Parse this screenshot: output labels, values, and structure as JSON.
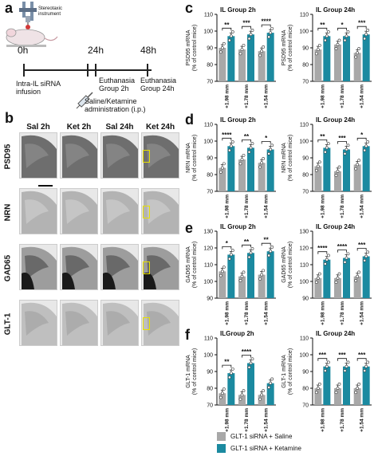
{
  "panels": {
    "a": "a",
    "b": "b",
    "c": "c",
    "d": "d",
    "e": "e",
    "f": "f"
  },
  "timeline": {
    "instrument_label": "Stereotaxic instrument",
    "t0": "0h",
    "t1": "24h",
    "t2": "48h",
    "infusion": "Intra-IL siRNA infusion",
    "drug": "Saline/Ketamine administration (i.p.)",
    "euth2": "Euthanasia Group 2h",
    "euth24": "Euthanasia Group 24h"
  },
  "histology": {
    "columns": [
      "Sal 2h",
      "Ket 2h",
      "Sal 24h",
      "Ket 24h"
    ],
    "rows": [
      "PSD95",
      "NRN",
      "GAD65",
      "GLT-1"
    ]
  },
  "colors": {
    "saline": "#a8a8a8",
    "ketamine": "#1b8aa0"
  },
  "legend": {
    "saline": "GLT-1 siRNA + Saline",
    "ketamine": "GLT-1 siRNA + Ketamine"
  },
  "chart_data": [
    {
      "type": "bar",
      "panel": "c",
      "title": "IL Group 2h",
      "ylabel": "PSD95 mRNA (% of control mice)",
      "ylim": [
        70,
        110
      ],
      "yticks": [
        70,
        80,
        90,
        100,
        110
      ],
      "categories": [
        "+1.98 mm",
        "+1.78 mm",
        "+1.54 mm"
      ],
      "series": [
        {
          "name": "GLT-1 siRNA + Saline",
          "values": [
            90,
            89,
            88
          ]
        },
        {
          "name": "GLT-1 siRNA + Ketamine",
          "values": [
            97,
            98,
            99
          ]
        }
      ],
      "significance": [
        "**",
        "***",
        "****"
      ]
    },
    {
      "type": "bar",
      "panel": "c",
      "title": "IL Group 24h",
      "ylabel": "PSD95 mRNA (% of control mice)",
      "ylim": [
        70,
        110
      ],
      "yticks": [
        70,
        80,
        90,
        100,
        110
      ],
      "categories": [
        "+1.98 mm",
        "+1.78 mm",
        "+1.54 mm"
      ],
      "series": [
        {
          "name": "GLT-1 siRNA + Saline",
          "values": [
            89,
            92,
            87
          ]
        },
        {
          "name": "GLT-1 siRNA + Ketamine",
          "values": [
            97,
            97,
            98
          ]
        }
      ],
      "significance": [
        "**",
        "*",
        "***"
      ]
    },
    {
      "type": "bar",
      "panel": "d",
      "title": "IL Group 2h",
      "ylabel": "NRN mRNA (% of control mice)",
      "ylim": [
        70,
        110
      ],
      "yticks": [
        70,
        80,
        90,
        100,
        110
      ],
      "categories": [
        "+1.98 mm",
        "+1.78 mm",
        "+1.54 mm"
      ],
      "series": [
        {
          "name": "GLT-1 siRNA + Saline",
          "values": [
            84,
            89,
            87
          ]
        },
        {
          "name": "GLT-1 siRNA + Ketamine",
          "values": [
            97,
            96,
            95
          ]
        }
      ],
      "significance": [
        "****",
        "**",
        "*"
      ]
    },
    {
      "type": "bar",
      "panel": "d",
      "title": "IL Group 24h",
      "ylabel": "NRN mRNA (% of control mice)",
      "ylim": [
        70,
        110
      ],
      "yticks": [
        70,
        80,
        90,
        100,
        110
      ],
      "categories": [
        "+1.98 mm",
        "+1.78 mm",
        "+1.54 mm"
      ],
      "series": [
        {
          "name": "GLT-1 siRNA + Saline",
          "values": [
            85,
            82,
            86
          ]
        },
        {
          "name": "GLT-1 siRNA + Ketamine",
          "values": [
            96,
            95,
            97
          ]
        }
      ],
      "significance": [
        "**",
        "***",
        "*"
      ]
    },
    {
      "type": "bar",
      "panel": "e",
      "title": "IL Group 2h",
      "ylabel": "GAD65 mRNA (% of control mice)",
      "ylim": [
        90,
        130
      ],
      "yticks": [
        90,
        100,
        110,
        120,
        130
      ],
      "categories": [
        "+1.98 mm",
        "+1.78 mm",
        "+1.54 mm"
      ],
      "series": [
        {
          "name": "GLT-1 siRNA + Saline",
          "values": [
            106,
            103,
            104
          ]
        },
        {
          "name": "GLT-1 siRNA + Ketamine",
          "values": [
            116,
            117,
            118
          ]
        }
      ],
      "significance": [
        "*",
        "**",
        "**"
      ]
    },
    {
      "type": "bar",
      "panel": "e",
      "title": "IL Group 24h",
      "ylabel": "GAD65 mRNA (% of control mice)",
      "ylim": [
        90,
        130
      ],
      "yticks": [
        90,
        100,
        110,
        120,
        130
      ],
      "categories": [
        "+1.98 mm",
        "+1.78 mm",
        "+1.54 mm"
      ],
      "series": [
        {
          "name": "GLT-1 siRNA + Saline",
          "values": [
            102,
            102,
            103
          ]
        },
        {
          "name": "GLT-1 siRNA + Ketamine",
          "values": [
            113,
            114,
            115
          ]
        }
      ],
      "significance": [
        "****",
        "****",
        "***"
      ]
    },
    {
      "type": "bar",
      "panel": "f",
      "title": "ILGroup 2h",
      "ylabel": "GLT-1 mRNA (% of control mice)",
      "ylim": [
        70,
        110
      ],
      "yticks": [
        70,
        80,
        90,
        100,
        110
      ],
      "categories": [
        "+1.98 mm",
        "+1.78 mm",
        "+1.54 mm"
      ],
      "series": [
        {
          "name": "GLT-1 siRNA + Saline",
          "values": [
            77,
            76,
            76
          ]
        },
        {
          "name": "GLT-1 siRNA + Ketamine",
          "values": [
            89,
            95,
            83
          ]
        }
      ],
      "significance": [
        "**",
        "****",
        ""
      ]
    },
    {
      "type": "bar",
      "panel": "f",
      "title": "IL Group 24h",
      "ylabel": "GLT-1 mRNA (% of control mice)",
      "ylim": [
        70,
        110
      ],
      "yticks": [
        70,
        80,
        90,
        100,
        110
      ],
      "categories": [
        "+1.98 mm",
        "+1.78 mm",
        "+1.54 mm"
      ],
      "series": [
        {
          "name": "GLT-1 siRNA + Saline",
          "values": [
            80,
            80,
            80
          ]
        },
        {
          "name": "GLT-1 siRNA + Ketamine",
          "values": [
            93,
            93,
            93
          ]
        }
      ],
      "significance": [
        "***",
        "***",
        "***"
      ]
    }
  ]
}
